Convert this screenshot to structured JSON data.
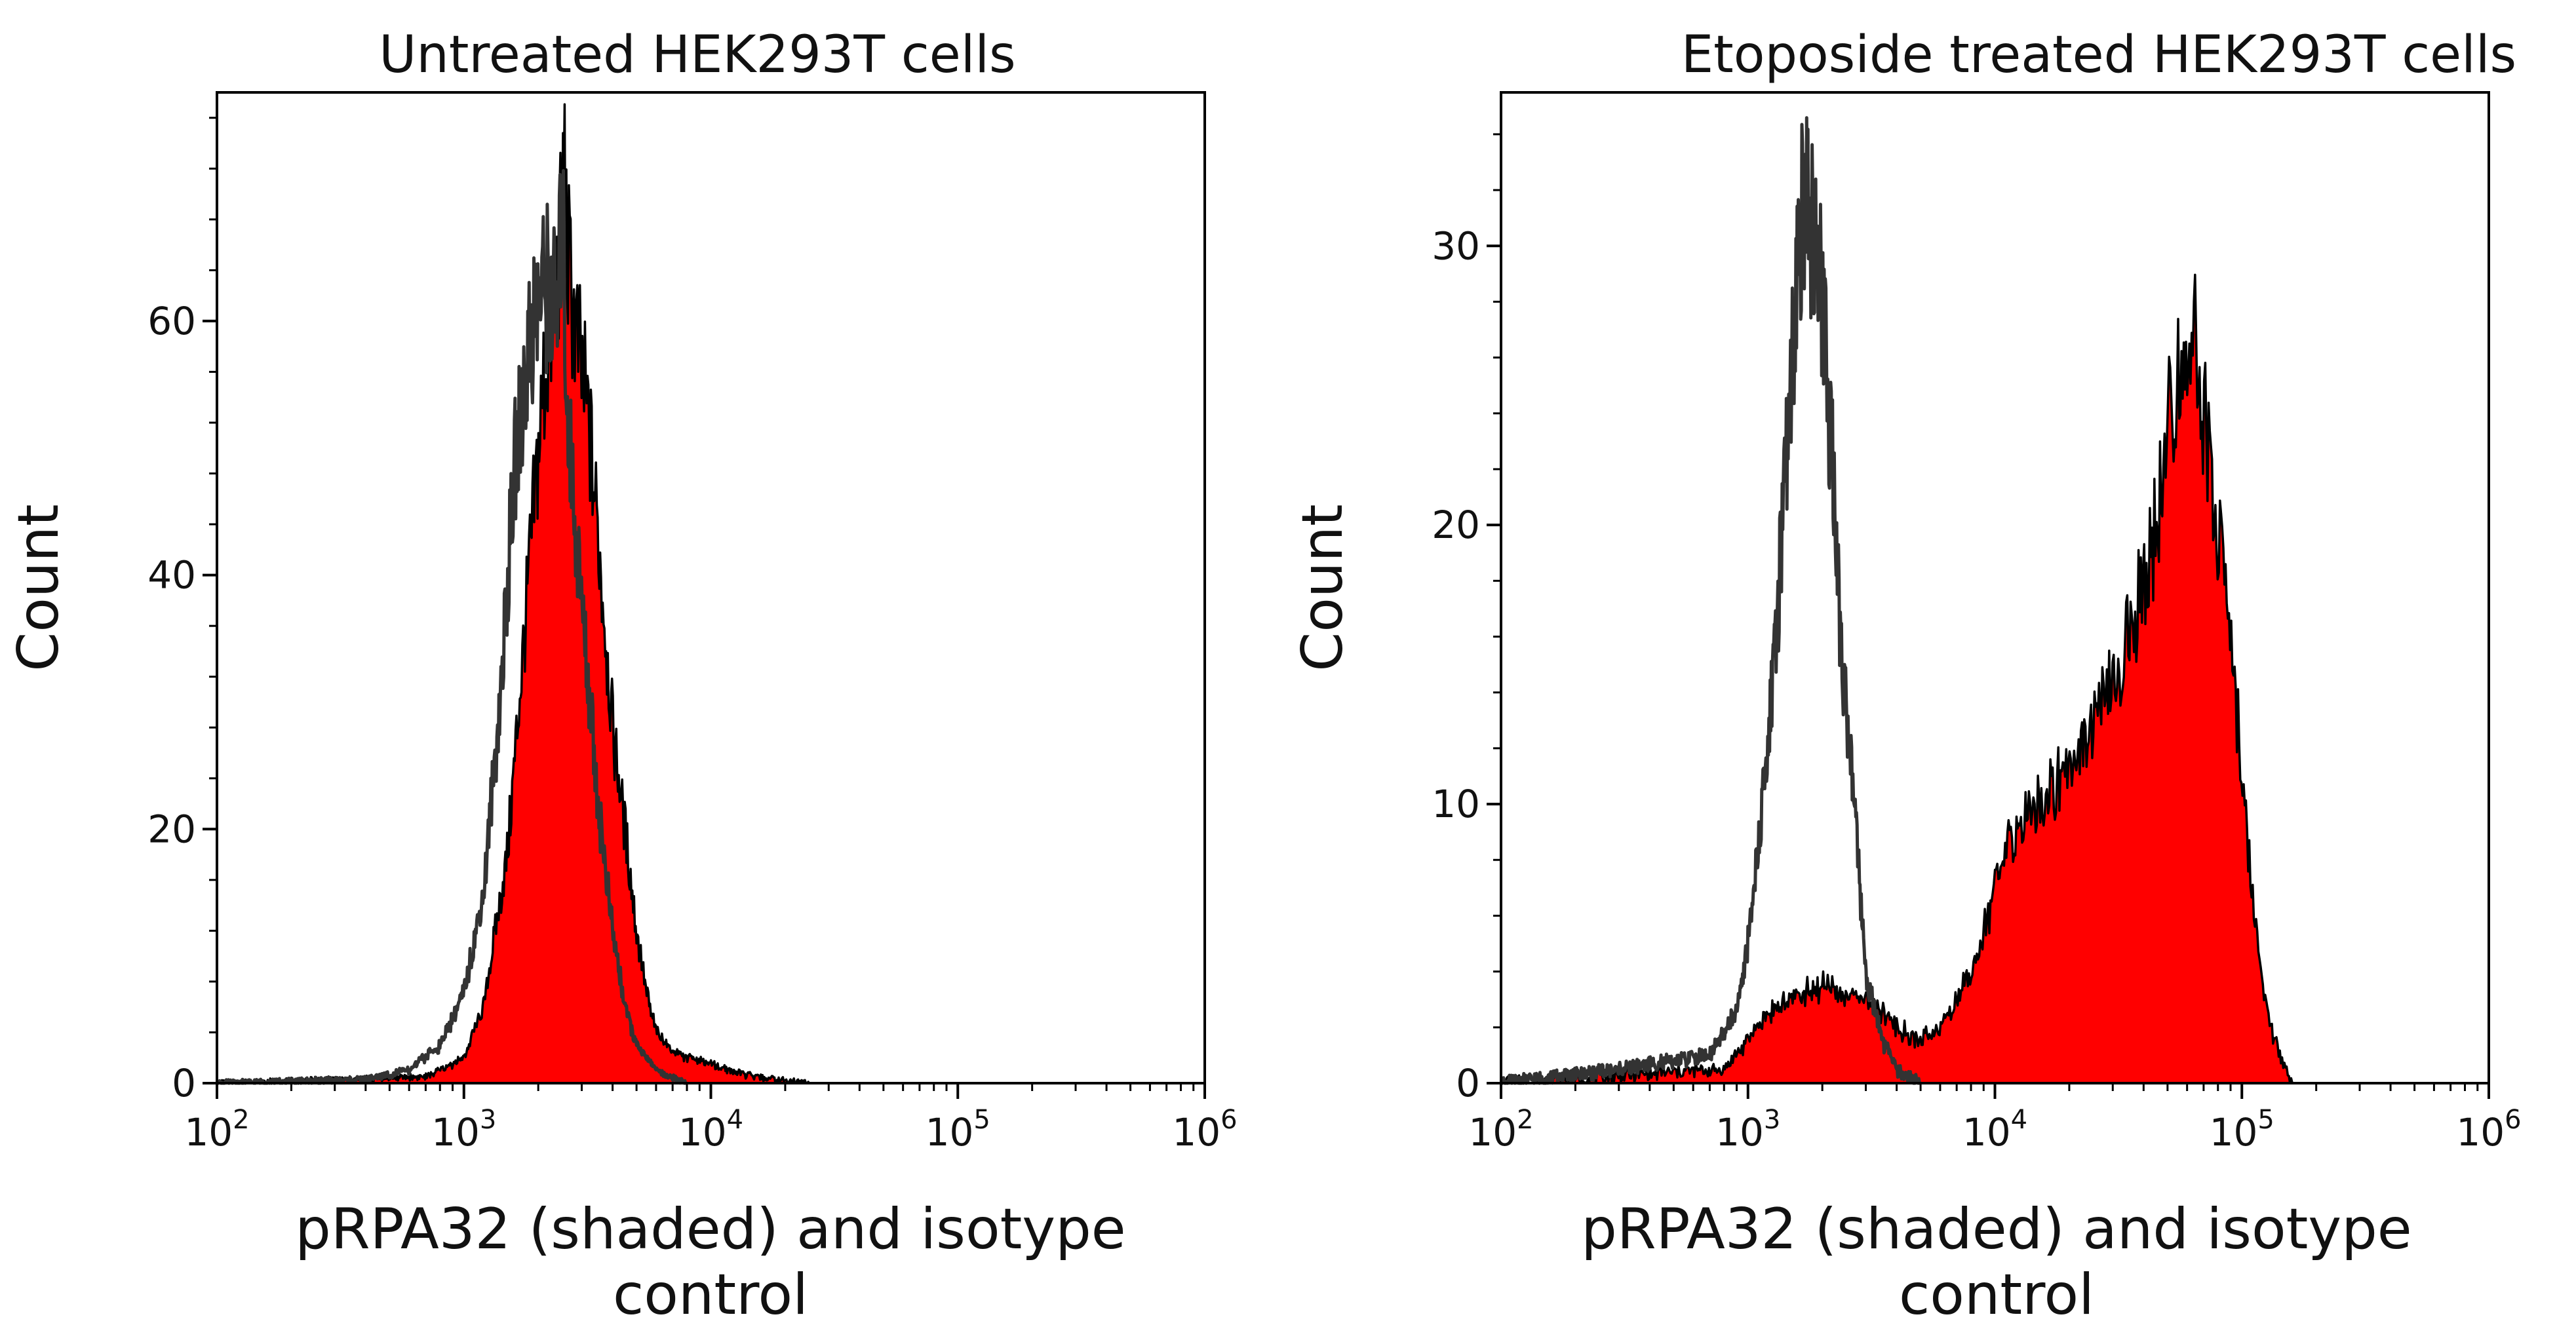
{
  "colors": {
    "shaded_fill": "#ff0000",
    "shaded_outline": "#000000",
    "isotype_line": "#333333",
    "frame": "#000000",
    "background": "#ffffff"
  },
  "chart_data": [
    {
      "type": "area",
      "title": "Untreated HEK293T cells",
      "ylabel": "Count",
      "xlabel_line1": "pRPA32 (shaded) and isotype",
      "xlabel_line2": "control",
      "xscale": "log",
      "xlim": [
        100,
        1000000
      ],
      "ylim": [
        0,
        78
      ],
      "xticks": [
        {
          "value": 100,
          "base": "10",
          "exp": "2"
        },
        {
          "value": 1000,
          "base": "10",
          "exp": "3"
        },
        {
          "value": 10000,
          "base": "10",
          "exp": "4"
        },
        {
          "value": 100000,
          "base": "10",
          "exp": "5"
        },
        {
          "value": 1000000,
          "base": "10",
          "exp": "6"
        }
      ],
      "yticks": [
        {
          "value": 0,
          "label": "0"
        },
        {
          "value": 20,
          "label": "20"
        },
        {
          "value": 40,
          "label": "40"
        },
        {
          "value": 60,
          "label": "60"
        }
      ],
      "series": [
        {
          "name": "pRPA32 (shaded)",
          "style": "filled",
          "x": [
            100,
            700,
            1000,
            1200,
            1500,
            1800,
            2100,
            2300,
            2400,
            2500,
            2550,
            2600,
            2800,
            3200,
            3600,
            4000,
            4500,
            5000,
            5500,
            6000,
            7000,
            8000,
            10000,
            12000,
            15000,
            20000,
            25000
          ],
          "y": [
            0,
            0.5,
            2,
            6,
            18,
            38,
            55,
            60,
            64,
            68,
            74,
            66,
            60,
            52,
            40,
            28,
            20,
            12,
            7,
            4,
            2.5,
            2,
            1.5,
            1,
            0.5,
            0.2,
            0
          ]
        },
        {
          "name": "Isotype control",
          "style": "line",
          "x": [
            100,
            400,
            600,
            800,
            1000,
            1200,
            1400,
            1600,
            1800,
            2000,
            2200,
            2400,
            2500,
            2600,
            2800,
            3000,
            3500,
            4000,
            4500,
            5000,
            6000,
            8000
          ],
          "y": [
            0,
            0.3,
            1,
            3,
            7,
            15,
            30,
            48,
            57,
            62,
            63,
            60,
            70,
            55,
            45,
            38,
            22,
            12,
            6,
            3,
            1,
            0
          ]
        }
      ]
    },
    {
      "type": "area",
      "title": "Etoposide treated HEK293T cells",
      "ylabel": "Count",
      "xlabel_line1": "pRPA32 (shaded) and isotype",
      "xlabel_line2": "control",
      "xscale": "log",
      "xlim": [
        100,
        1000000
      ],
      "ylim": [
        0,
        35.5
      ],
      "xticks": [
        {
          "value": 100,
          "base": "10",
          "exp": "2"
        },
        {
          "value": 1000,
          "base": "10",
          "exp": "3"
        },
        {
          "value": 10000,
          "base": "10",
          "exp": "4"
        },
        {
          "value": 100000,
          "base": "10",
          "exp": "5"
        },
        {
          "value": 1000000,
          "base": "10",
          "exp": "6"
        }
      ],
      "yticks": [
        {
          "value": 0,
          "label": "0"
        },
        {
          "value": 10,
          "label": "10"
        },
        {
          "value": 20,
          "label": "20"
        },
        {
          "value": 30,
          "label": "30"
        }
      ],
      "series": [
        {
          "name": "pRPA32 (shaded)",
          "style": "filled",
          "x": [
            100,
            800,
            1000,
            1200,
            1500,
            2000,
            2500,
            3000,
            3500,
            4000,
            5000,
            6000,
            7000,
            8000,
            9000,
            10000,
            12000,
            15000,
            20000,
            25000,
            30000,
            35000,
            40000,
            45000,
            50000,
            55000,
            60000,
            65000,
            70000,
            80000,
            90000,
            100000,
            110000,
            120000,
            130000,
            150000,
            160000
          ],
          "y": [
            0,
            0.5,
            1.5,
            2.5,
            3,
            3.5,
            3,
            3,
            2.5,
            2,
            1.5,
            2,
            3,
            4,
            5.5,
            7,
            9,
            10,
            11.5,
            13,
            14,
            16,
            18,
            20,
            23,
            25,
            27,
            26,
            24,
            20,
            16,
            11,
            7,
            4,
            2,
            0.5,
            0
          ]
        },
        {
          "name": "Isotype control",
          "style": "line",
          "x": [
            100,
            300,
            500,
            700,
            900,
            1000,
            1100,
            1200,
            1300,
            1400,
            1500,
            1600,
            1700,
            1800,
            1900,
            2000,
            2200,
            2400,
            2600,
            2800,
            3000,
            3500,
            4000,
            5000
          ],
          "y": [
            0,
            0.5,
            0.8,
            1,
            2.5,
            5,
            8.5,
            12,
            16,
            21,
            26,
            30,
            32,
            31,
            30,
            28,
            22,
            15,
            12,
            8,
            4,
            1.5,
            0.5,
            0
          ]
        }
      ]
    }
  ]
}
